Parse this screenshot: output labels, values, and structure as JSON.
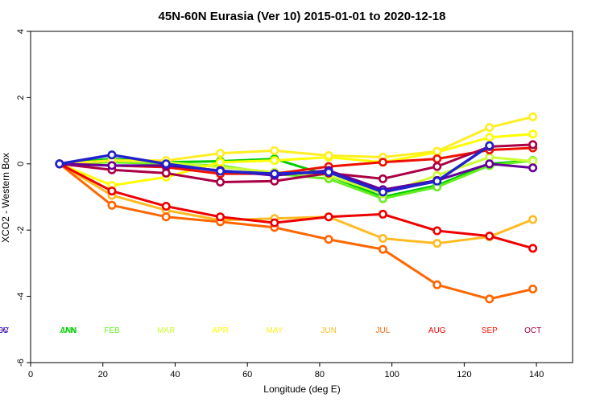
{
  "chart_data": {
    "type": "line",
    "title": "45N-60N Eurasia (Ver 10)   2015-01-01 to 2020-12-18",
    "xlabel": "Longitude (deg E)",
    "ylabel": "XCO2 - Western Box",
    "xlim": [
      0,
      150
    ],
    "ylim": [
      -6,
      4
    ],
    "xticks": [
      "0",
      "20",
      "40",
      "60",
      "80",
      "100",
      "120",
      "140"
    ],
    "yticks": [
      "-6",
      "-4",
      "-2",
      "0",
      "2",
      "4"
    ],
    "x": [
      8,
      22.5,
      37.5,
      52.5,
      67.5,
      82.5,
      97.5,
      112.5,
      127,
      139
    ],
    "legend_placement": "bottom",
    "series": [
      {
        "name": "JAN",
        "color": "#00cc00",
        "values": [
          0,
          0.15,
          0.05,
          0.08,
          0.15,
          -0.35,
          -1.0,
          -0.65,
          0.0,
          0.1
        ]
      },
      {
        "name": "FEB",
        "color": "#66ee22",
        "values": [
          0,
          0.05,
          0.0,
          -0.05,
          -0.3,
          -0.45,
          -1.05,
          -0.7,
          -0.05,
          0.1
        ]
      },
      {
        "name": "MAR",
        "color": "#ccff33",
        "values": [
          0,
          0.1,
          0.05,
          -0.1,
          -0.25,
          -0.35,
          -0.9,
          -0.35,
          0.2,
          0.08
        ]
      },
      {
        "name": "APR",
        "color": "#ffff00",
        "values": [
          0,
          -0.65,
          -0.4,
          0.05,
          0.1,
          0.2,
          0.05,
          0.35,
          0.8,
          0.9
        ]
      },
      {
        "name": "MAY",
        "color": "#ffee22",
        "values": [
          0,
          0.1,
          0.1,
          0.32,
          0.4,
          0.25,
          0.2,
          0.38,
          1.1,
          1.42
        ]
      },
      {
        "name": "JUN",
        "color": "#ffbb22",
        "values": [
          0,
          -0.95,
          -1.4,
          -1.7,
          -1.65,
          -1.6,
          -2.25,
          -2.4,
          -2.2,
          -1.68
        ]
      },
      {
        "name": "JUL",
        "color": "#ff6600",
        "values": [
          0,
          -1.25,
          -1.6,
          -1.75,
          -1.92,
          -2.28,
          -2.58,
          -3.65,
          -4.08,
          -3.78
        ]
      },
      {
        "name": "AUG",
        "color": "#ee0000",
        "values": [
          0,
          -0.82,
          -1.28,
          -1.6,
          -1.78,
          -1.6,
          -1.52,
          -2.02,
          -2.18,
          -2.55
        ]
      },
      {
        "name": "SEP",
        "color": "#ee1100",
        "values": [
          0,
          -0.05,
          -0.1,
          -0.3,
          -0.3,
          -0.08,
          0.05,
          0.15,
          0.42,
          0.48
        ]
      },
      {
        "name": "OCT",
        "color": "#aa0044",
        "values": [
          0,
          -0.18,
          -0.28,
          -0.55,
          -0.52,
          -0.28,
          -0.45,
          -0.08,
          0.52,
          0.58
        ]
      },
      {
        "name": "NOV",
        "color": "#660099",
        "values": [
          0,
          -0.05,
          -0.05,
          -0.2,
          -0.35,
          -0.2,
          -0.78,
          -0.5,
          0.0,
          -0.12
        ]
      },
      {
        "name": "DEC",
        "color": "#2222cc",
        "values": [
          0,
          0.27,
          0.0,
          -0.22,
          -0.3,
          -0.25,
          -0.85,
          -0.52,
          0.55,
          null
        ]
      }
    ],
    "annual": {
      "name": "ANN",
      "color": "#00cc00"
    }
  }
}
